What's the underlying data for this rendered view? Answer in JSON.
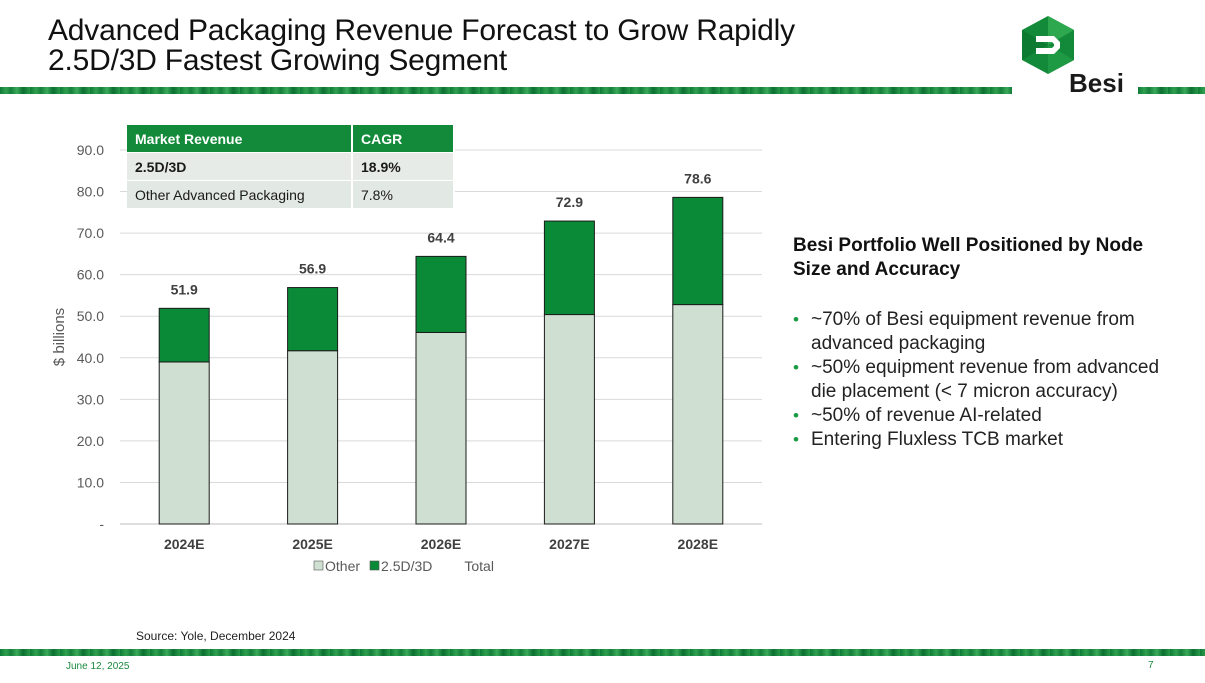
{
  "slide": {
    "title_line1": "Advanced Packaging Revenue Forecast to Grow Rapidly",
    "title_line2": "2.5D/3D Fastest Growing Segment",
    "logo_text": "Besi",
    "source": "Source: Yole, December 2024",
    "date": "June 12, 2025",
    "page_number": "7",
    "accent_color": "#138a3a"
  },
  "cagr_table": {
    "headers": [
      "Market Revenue",
      "CAGR"
    ],
    "rows": [
      {
        "segment": "2.5D/3D",
        "cagr": "18.9%"
      },
      {
        "segment": "Other Advanced Packaging",
        "cagr": "7.8%"
      }
    ]
  },
  "chart_data": {
    "type": "bar",
    "stacked": true,
    "categories": [
      "2024E",
      "2025E",
      "2026E",
      "2027E",
      "2028E"
    ],
    "series": [
      {
        "name": "Other",
        "values": [
          39.0,
          41.7,
          46.1,
          50.4,
          52.8
        ],
        "color": "#cfdfd2"
      },
      {
        "name": "2.5D/3D",
        "values": [
          12.9,
          15.2,
          18.3,
          22.5,
          25.8
        ],
        "color": "#0a8a37"
      }
    ],
    "totals": [
      51.9,
      56.9,
      64.4,
      72.9,
      78.6
    ],
    "total_labels": [
      "51.9",
      "56.9",
      "64.4",
      "72.9",
      "78.6"
    ],
    "legend": [
      "Other",
      "2.5D/3D",
      "Total"
    ],
    "ylabel": "$ billions",
    "ylim": [
      0,
      90
    ],
    "yticks": [
      0,
      10,
      20,
      30,
      40,
      50,
      60,
      70,
      80,
      90
    ],
    "ytick_labels": [
      "-",
      "10.0",
      "20.0",
      "30.0",
      "40.0",
      "50.0",
      "60.0",
      "70.0",
      "80.0",
      "90.0"
    ],
    "grid": true
  },
  "panel": {
    "heading": "Besi Portfolio Well Positioned by Node Size and Accuracy",
    "bullets": [
      "~70% of Besi equipment revenue from advanced packaging",
      "~50% equipment revenue from advanced die placement (< 7 micron accuracy)",
      "~50% of revenue AI-related",
      "Entering Fluxless TCB market"
    ]
  }
}
